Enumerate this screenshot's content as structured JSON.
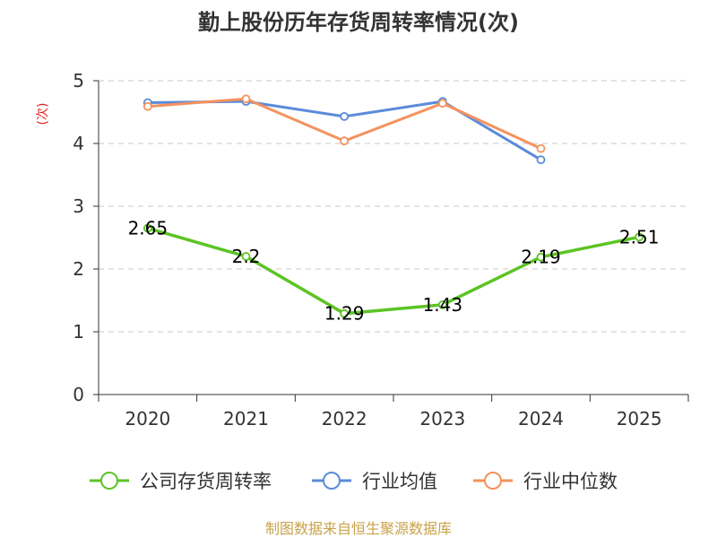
{
  "chart_data": {
    "type": "line",
    "title": "勤上股份历年存货周转率情况(次)",
    "ylabel": "(次)",
    "xlabel": "",
    "categories": [
      "2020",
      "2021",
      "2022",
      "2023",
      "2024",
      "2025"
    ],
    "ylim": [
      0,
      5
    ],
    "yticks": [
      0,
      1,
      2,
      3,
      4,
      5
    ],
    "grid": true,
    "legend_position": "bottom",
    "series": [
      {
        "name": "公司存货周转率",
        "color": "#5cc424",
        "values": [
          2.65,
          2.2,
          1.29,
          1.43,
          2.19,
          2.51
        ],
        "labels": [
          "2.65",
          "2.2",
          "1.29",
          "1.43",
          "2.19",
          "2.51"
        ]
      },
      {
        "name": "行业均值",
        "color": "#5b8bd9",
        "values": [
          4.65,
          4.67,
          4.43,
          4.67,
          3.74,
          null
        ]
      },
      {
        "name": "行业中位数",
        "color": "#f4925e",
        "values": [
          4.59,
          4.71,
          4.04,
          4.64,
          3.92,
          null
        ]
      }
    ]
  },
  "source": "制图数据来自恒生聚源数据库"
}
